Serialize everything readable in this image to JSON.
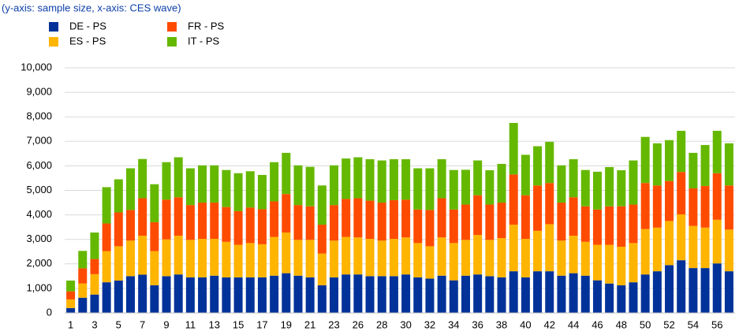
{
  "chart_data": {
    "type": "stacked_bar",
    "subtitle": "(y-axis: sample size, x-axis: CES wave)",
    "categories": [
      "1",
      null,
      "3",
      null,
      "5",
      null,
      "7",
      null,
      "9",
      null,
      "11",
      null,
      "13",
      null,
      "15",
      null,
      "17",
      null,
      "19",
      null,
      "21",
      null,
      "23",
      null,
      "26",
      null,
      "28",
      null,
      "30",
      null,
      "32",
      null,
      "34",
      null,
      "36",
      null,
      "38",
      null,
      "40",
      null,
      "42",
      null,
      "44",
      null,
      "46",
      null,
      "48",
      null,
      "50",
      null,
      "52",
      null,
      "54",
      null,
      "56",
      null
    ],
    "series": [
      {
        "name": "DE - PS",
        "color": "#003299",
        "values": [
          200,
          620,
          750,
          1250,
          1320,
          1500,
          1560,
          1130,
          1500,
          1570,
          1450,
          1450,
          1520,
          1450,
          1450,
          1450,
          1450,
          1520,
          1620,
          1520,
          1450,
          1130,
          1450,
          1570,
          1570,
          1500,
          1500,
          1500,
          1570,
          1450,
          1400,
          1520,
          1330,
          1520,
          1570,
          1500,
          1450,
          1700,
          1450,
          1700,
          1700,
          1520,
          1620,
          1520,
          1330,
          1200,
          1130,
          1250,
          1570,
          1700,
          1950,
          2150,
          1830,
          1830,
          2020,
          1700
        ]
      },
      {
        "name": "ES - PS",
        "color": "#ffb400",
        "values": [
          350,
          580,
          830,
          1270,
          1400,
          1450,
          1590,
          1390,
          1500,
          1580,
          1530,
          1570,
          1500,
          1450,
          1330,
          1400,
          1350,
          1580,
          1660,
          1460,
          1530,
          1290,
          1500,
          1530,
          1510,
          1520,
          1450,
          1520,
          1510,
          1400,
          1320,
          1560,
          1520,
          1460,
          1610,
          1480,
          1600,
          1900,
          1570,
          1650,
          1920,
          1430,
          1530,
          1380,
          1450,
          1580,
          1570,
          1600,
          1850,
          1780,
          1800,
          1870,
          1720,
          1650,
          1780,
          1700
        ]
      },
      {
        "name": "FR - PS",
        "color": "#ff4b00",
        "values": [
          330,
          620,
          620,
          1130,
          1380,
          1250,
          1530,
          1180,
          1620,
          1570,
          1420,
          1480,
          1480,
          1420,
          1370,
          1450,
          1430,
          1450,
          1570,
          1420,
          1370,
          1180,
          1450,
          1550,
          1600,
          1560,
          1550,
          1580,
          1540,
          1370,
          1480,
          1600,
          1370,
          1440,
          1620,
          1440,
          1450,
          2050,
          1780,
          1850,
          1680,
          1550,
          1570,
          1450,
          1440,
          1570,
          1650,
          1570,
          1880,
          1720,
          1630,
          1730,
          1530,
          1700,
          1900,
          1800
        ]
      },
      {
        "name": "IT - PS",
        "color": "#65b800",
        "values": [
          440,
          710,
          1080,
          1480,
          1350,
          1700,
          1600,
          1550,
          1530,
          1630,
          1500,
          1520,
          1520,
          1510,
          1550,
          1480,
          1400,
          1600,
          1680,
          1620,
          1610,
          1600,
          1620,
          1650,
          1670,
          1690,
          1720,
          1670,
          1650,
          1680,
          1700,
          1590,
          1610,
          1420,
          1420,
          1400,
          1580,
          2100,
          1650,
          1600,
          1680,
          1520,
          1550,
          1480,
          1540,
          1600,
          1470,
          1800,
          1880,
          1720,
          1670,
          1680,
          1450,
          1670,
          1730,
          1720
        ]
      }
    ],
    "ylim": [
      0,
      10000
    ],
    "yticks": [
      0,
      {
        "value": 1000,
        "label": "1,000"
      },
      {
        "value": 2000,
        "label": "2,000"
      },
      {
        "value": 3000,
        "label": "3,000"
      },
      {
        "value": 4000,
        "label": "4,000"
      },
      {
        "value": 5000,
        "label": "5,000"
      },
      {
        "value": 6000,
        "label": "6,000"
      },
      {
        "value": 7000,
        "label": "7,000"
      },
      {
        "value": 8000,
        "label": "8,000"
      },
      {
        "value": 9000,
        "label": "9,000"
      },
      {
        "value": 10000,
        "label": "10,000"
      }
    ],
    "grid": true
  }
}
